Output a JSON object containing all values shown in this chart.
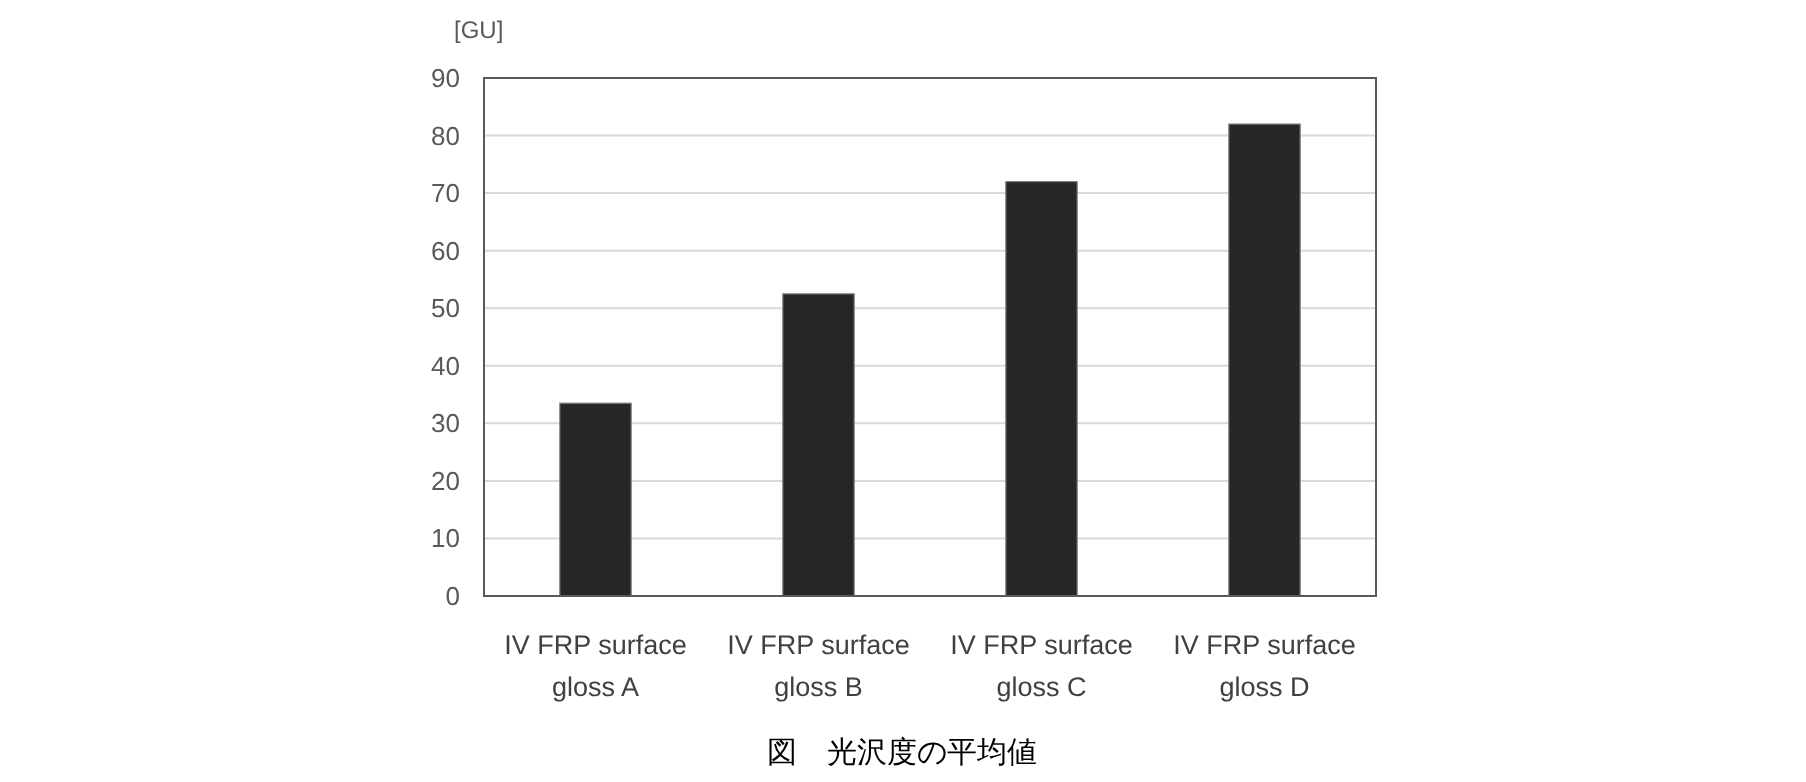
{
  "chart_data": {
    "type": "bar",
    "ylabel": "[GU]",
    "categories": [
      "IV FRP surface gloss A",
      "IV FRP surface gloss B",
      "IV FRP surface gloss C",
      "IV FRP surface gloss D"
    ],
    "values": [
      33.5,
      52.5,
      72,
      82
    ],
    "color": "#262626",
    "ylim": [
      0,
      90
    ],
    "yticks": [
      0,
      10,
      20,
      30,
      40,
      50,
      60,
      70,
      80,
      90
    ],
    "grid": "y",
    "annotations": [
      "図　光沢度の平均値"
    ]
  }
}
